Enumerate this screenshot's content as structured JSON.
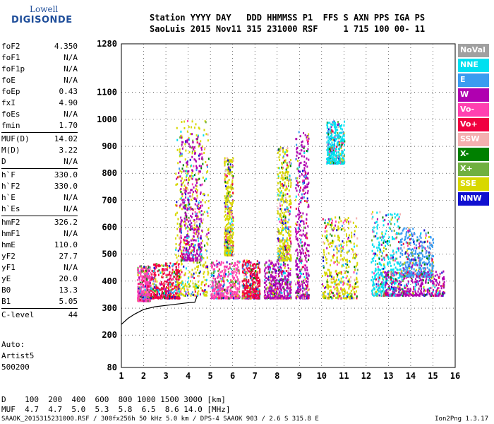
{
  "logo": {
    "line1": "Lowell",
    "line2": "DIGISONDE"
  },
  "header": {
    "line1": "Station YYYY DAY   DDD HHMMSS P1  FFS S AXN PPS IGA PS",
    "line2": "SaoLuis 2015 Nov11 315 231000 RSF     1 715 100 00- 11"
  },
  "params": [
    {
      "name": "foF2",
      "value": "4.350"
    },
    {
      "name": "foF1",
      "value": "N/A"
    },
    {
      "name": "foF1p",
      "value": "N/A"
    },
    {
      "name": "foE",
      "value": "N/A"
    },
    {
      "name": "foEp",
      "value": "0.43"
    },
    {
      "name": "fxI",
      "value": "4.90"
    },
    {
      "name": "foEs",
      "value": "N/A"
    },
    {
      "name": "fmin",
      "value": "1.70"
    },
    {
      "name": "MUF(D)",
      "value": "14.02"
    },
    {
      "name": "M(D)",
      "value": "3.22"
    },
    {
      "name": "D",
      "value": "N/A"
    },
    {
      "name": "h`F",
      "value": "330.0"
    },
    {
      "name": "h`F2",
      "value": "330.0"
    },
    {
      "name": "h`E",
      "value": "N/A"
    },
    {
      "name": "h`Es",
      "value": "N/A"
    },
    {
      "name": "hmF2",
      "value": "326.2"
    },
    {
      "name": "hmF1",
      "value": "N/A"
    },
    {
      "name": "hmE",
      "value": "110.0"
    },
    {
      "name": "yF2",
      "value": "27.7"
    },
    {
      "name": "yF1",
      "value": "N/A"
    },
    {
      "name": "yE",
      "value": "20.0"
    },
    {
      "name": "B0",
      "value": "13.3"
    },
    {
      "name": "B1",
      "value": "5.05"
    },
    {
      "name": "C-level",
      "value": "44"
    }
  ],
  "auto": {
    "label": "Auto:",
    "artist": "Artist5",
    "code": "500200"
  },
  "mufrow": {
    "d_line": "D    100  200  400  600  800 1000 1500 3000 [km]",
    "muf_line": "MUF  4.7  4.7  5.0  5.3  5.8  6.5  8.6 14.0 [MHz]"
  },
  "footer": {
    "left": "SAAOK_2015315231000.RSF / 300fx256h 50 kHz 5.0 km / DPS-4 SAAOK 903 / 2.6 S 315.8 E",
    "right": "Ion2Png 1.3.17"
  },
  "legend": [
    {
      "label": "NoVal",
      "color": "#a0a0a0"
    },
    {
      "label": "NNE",
      "color": "#00e0f0"
    },
    {
      "label": "E",
      "color": "#3a9cf0"
    },
    {
      "label": "W",
      "color": "#b000b0"
    },
    {
      "label": "Vo-",
      "color": "#ff40b0"
    },
    {
      "label": "Vo+",
      "color": "#f00040"
    },
    {
      "label": "SSW",
      "color": "#f4b0b0"
    },
    {
      "label": "X-",
      "color": "#008000"
    },
    {
      "label": "X+",
      "color": "#70b040"
    },
    {
      "label": "SSE",
      "color": "#d8d800"
    },
    {
      "label": "NNW",
      "color": "#1010d0"
    }
  ],
  "chart_data": {
    "type": "scatter",
    "title": "",
    "xlabel": "",
    "ylabel": "",
    "xlim": [
      1,
      16
    ],
    "ylim": [
      80,
      1280
    ],
    "xticks": [
      1,
      2,
      3,
      4,
      5,
      6,
      7,
      8,
      9,
      10,
      11,
      12,
      13,
      14,
      15,
      16
    ],
    "yticks": [
      80,
      200,
      300,
      400,
      500,
      600,
      700,
      800,
      900,
      1000,
      1100,
      1280
    ],
    "grid": true,
    "clusters": [
      {
        "x": [
          1.7,
          2.3
        ],
        "y": [
          330,
          460
        ],
        "color": "#ff40b0"
      },
      {
        "x": [
          2.3,
          3.6
        ],
        "y": [
          340,
          470
        ],
        "color": "#f00040"
      },
      {
        "x": [
          3.4,
          4.9
        ],
        "y": [
          350,
          1000
        ],
        "color": "#d8d800"
      },
      {
        "x": [
          3.6,
          4.6
        ],
        "y": [
          480,
          960
        ],
        "color": "#b000b0"
      },
      {
        "x": [
          5.0,
          6.3
        ],
        "y": [
          340,
          480
        ],
        "color": "#ff40b0"
      },
      {
        "x": [
          5.6,
          6.0
        ],
        "y": [
          500,
          860
        ],
        "color": "#d8d800"
      },
      {
        "x": [
          6.4,
          7.2
        ],
        "y": [
          340,
          480
        ],
        "color": "#f00040"
      },
      {
        "x": [
          7.4,
          8.6
        ],
        "y": [
          340,
          480
        ],
        "color": "#b000b0"
      },
      {
        "x": [
          8.0,
          8.6
        ],
        "y": [
          480,
          900
        ],
        "color": "#d8d800"
      },
      {
        "x": [
          8.8,
          9.4
        ],
        "y": [
          340,
          960
        ],
        "color": "#b000b0"
      },
      {
        "x": [
          10.0,
          11.6
        ],
        "y": [
          340,
          640
        ],
        "color": "#d8d800"
      },
      {
        "x": [
          10.2,
          11.0
        ],
        "y": [
          840,
          1000
        ],
        "color": "#00e0f0"
      },
      {
        "x": [
          12.2,
          13.5
        ],
        "y": [
          350,
          660
        ],
        "color": "#00e0f0"
      },
      {
        "x": [
          12.8,
          15.5
        ],
        "y": [
          350,
          440
        ],
        "color": "#b000b0"
      },
      {
        "x": [
          13.5,
          15.0
        ],
        "y": [
          420,
          600
        ],
        "color": "#3a9cf0"
      }
    ],
    "trace": {
      "x": [
        1,
        1.3,
        1.6,
        2.0,
        2.5,
        3.0,
        3.5,
        4.0,
        4.3,
        4.4
      ],
      "y": [
        240,
        262,
        278,
        295,
        305,
        310,
        315,
        320,
        322,
        345
      ],
      "color": "#000000"
    }
  }
}
